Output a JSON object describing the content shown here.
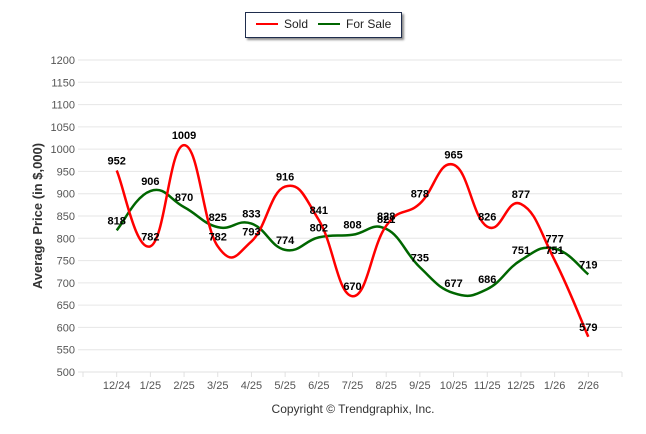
{
  "legend": {
    "items": [
      {
        "label": "Sold",
        "color": "#ff0000"
      },
      {
        "label": "For Sale",
        "color": "#006600"
      }
    ]
  },
  "copyright": "Copyright © Trendgraphix, Inc.",
  "chart_data": {
    "type": "line",
    "title": "",
    "xlabel": "",
    "ylabel": "Average Price (in $,000)",
    "ylim": [
      500,
      1200
    ],
    "yticks": [
      500,
      550,
      600,
      650,
      700,
      750,
      800,
      850,
      900,
      950,
      1000,
      1050,
      1100,
      1150,
      1200
    ],
    "grid": true,
    "legend_position": "top-center",
    "categories": [
      "12/24",
      "1/25",
      "2/25",
      "3/25",
      "4/25",
      "5/25",
      "6/25",
      "7/25",
      "8/25",
      "9/25",
      "10/25",
      "11/25",
      "12/25",
      "1/26",
      "2/26"
    ],
    "series": [
      {
        "name": "Sold",
        "color": "#ff0000",
        "values": [
          952,
          782,
          1009,
          782,
          793,
          916,
          841,
          670,
          828,
          878,
          965,
          826,
          877,
          751,
          579
        ]
      },
      {
        "name": "For Sale",
        "color": "#006600",
        "values": [
          818,
          906,
          870,
          825,
          833,
          774,
          802,
          808,
          821,
          735,
          677,
          686,
          751,
          777,
          719
        ]
      }
    ]
  }
}
